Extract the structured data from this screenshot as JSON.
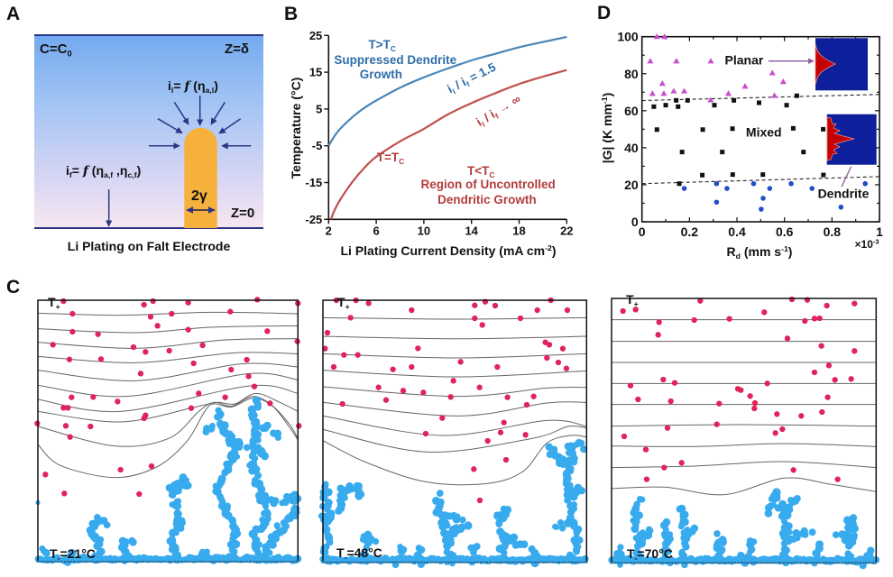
{
  "figure": {
    "panel_labels": {
      "a": "A",
      "b": "B",
      "c": "C",
      "d": "D"
    },
    "panel_a": {
      "concentration_label": "C=C_{0}",
      "top_boundary_label": "Z=δ",
      "bottom_boundary_label": "Z=0",
      "tip_current_label": "i_{l}= *f* (η_{a,l})",
      "flat_current_label": "i_{f}= *f* (η_{a,f} ,η_{c,f})",
      "tip_width_label": "2γ",
      "caption": "Li Plating on Falt Electrode",
      "colors": {
        "electrolyte_top": "#74aaf0",
        "electrolyte_bottom": "#f6e6f0",
        "dendrite": "#f6b03c",
        "arrows": "#2b3585"
      }
    },
    "panel_c": {
      "simulations": [
        {
          "anode_label": "T_{+}",
          "cathode_label": "T_{-}=21°C"
        },
        {
          "anode_label": "T_{+}",
          "cathode_label": "T_{-}=48°C"
        },
        {
          "anode_label": "T_{+}",
          "cathode_label": "T_{-}=70°C"
        }
      ],
      "colors": {
        "ions": "#e0245a",
        "dendrite": "#38aaee",
        "isotherms": "#666666"
      }
    }
  },
  "chart_data": [
    {
      "panel": "B",
      "type": "line",
      "title": "",
      "xlabel": "Li Plating Current Density (mA cm^{-2})",
      "ylabel": "Temperature (°C)",
      "xlim": [
        2,
        22
      ],
      "ylim": [
        -25,
        25
      ],
      "xticks": [
        2,
        6,
        10,
        14,
        18,
        22
      ],
      "yticks": [
        25,
        15,
        5,
        -5,
        -15,
        -25
      ],
      "grid": false,
      "series": [
        {
          "name": "i_{l} / i_{f} = 1.5",
          "color": "#4a86b8",
          "x": [
            2,
            2.5,
            3,
            4,
            5,
            6,
            8,
            10,
            12,
            14,
            16,
            18,
            20,
            22
          ],
          "y": [
            -5,
            -2.3,
            -0.3,
            2.8,
            5.3,
            7.3,
            10.8,
            13.6,
            16.0,
            18.2,
            20.0,
            21.8,
            23.2,
            24.6
          ]
        },
        {
          "name": "i_{l} / i_{f} → ∞",
          "color": "#c0504d",
          "x": [
            2.2,
            2.5,
            3,
            4,
            5,
            6,
            8,
            10,
            12,
            14,
            16,
            18,
            20,
            22
          ],
          "y": [
            -25,
            -22.5,
            -19.5,
            -14.8,
            -11.0,
            -8.0,
            -3.8,
            -0.4,
            3.5,
            6.6,
            9.3,
            11.8,
            13.8,
            15.6
          ]
        }
      ],
      "annotations": [
        {
          "text": "T>T_{C}",
          "at": [
            6.5,
            22.4
          ],
          "color": "#2f6ea8"
        },
        {
          "text": "Suppressed Dendrite",
          "at": [
            7.6,
            18.2
          ],
          "color": "#2f6ea8"
        },
        {
          "text": "Growth",
          "at": [
            6.4,
            14.3
          ],
          "color": "#2f6ea8"
        },
        {
          "text": "i_{l} / i_{f} = 1.5",
          "at": [
            14.0,
            13.3
          ],
          "color": "#2f6ea8"
        },
        {
          "text": "i_{l} / i_{f} → ∞",
          "at": [
            16.3,
            4.5
          ],
          "color": "#b23c3c"
        },
        {
          "text": "T=T_{C}",
          "at": [
            7.2,
            -8.3
          ],
          "color": "#b23c3c"
        },
        {
          "text": "T<T_{C}",
          "at": [
            14.8,
            -11.9
          ],
          "color": "#b23c3c"
        },
        {
          "text": "Region of Uncontrolled",
          "at": [
            15.4,
            -15.6
          ],
          "color": "#b23c3c"
        },
        {
          "text": "Dendritic Growth",
          "at": [
            15.3,
            -19.8
          ],
          "color": "#b23c3c"
        }
      ]
    },
    {
      "panel": "D",
      "type": "scatter",
      "title": "",
      "xlabel": "R_{d} (mm s^{-1})",
      "ylabel": "|G| (K mm^{-1})",
      "x_multiplier": "×10^{-3}",
      "xlim": [
        0,
        1
      ],
      "ylim": [
        0,
        100
      ],
      "xticks": [
        0,
        0.2,
        0.4,
        0.6,
        0.8,
        1
      ],
      "yticks": [
        0,
        20,
        40,
        60,
        80,
        100
      ],
      "grid": false,
      "series": [
        {
          "name": "Planar",
          "marker": "triangle",
          "color": "#c94fcf",
          "x": [
            0.035,
            0.063,
            0.095,
            0.145,
            0.29,
            0.086,
            0.044,
            0.092,
            0.134,
            0.178,
            0.289,
            0.364,
            0.434,
            0.549,
            0.595,
            0.558
          ],
          "y": [
            86.8,
            100,
            100,
            86.8,
            86.8,
            74.7,
            69.3,
            69.3,
            70.6,
            70.6,
            65.8,
            69.3,
            73.2,
            80.4,
            75.7,
            68.2
          ]
        },
        {
          "name": "Mixed",
          "marker": "square",
          "color": "#111111",
          "x": [
            0.05,
            0.1,
            0.144,
            0.152,
            0.192,
            0.305,
            0.387,
            0.493,
            0.609,
            0.652,
            0.063,
            0.256,
            0.381,
            0.637,
            0.763,
            0.169,
            0.338,
            0.68,
            0.254,
            0.382,
            0.509,
            0.764,
            0.157
          ],
          "y": [
            62.2,
            63.0,
            65.6,
            62.2,
            65.6,
            63.0,
            65.6,
            64.3,
            63.0,
            68.1,
            49.8,
            49.8,
            50.3,
            50.5,
            50.0,
            37.7,
            37.7,
            37.7,
            25.2,
            25.5,
            25.5,
            25.3,
            20.6
          ]
        },
        {
          "name": "Dendrite",
          "marker": "circle",
          "color": "#1f4fc8",
          "x": [
            0.178,
            0.314,
            0.358,
            0.47,
            0.314,
            0.51,
            0.502,
            0.538,
            0.628,
            0.716,
            0.838,
            0.94
          ],
          "y": [
            18.0,
            20.6,
            18.0,
            20.6,
            10.6,
            12.7,
            6.8,
            18.0,
            20.6,
            18.0,
            7.9,
            20.6
          ]
        }
      ],
      "boundaries": [
        {
          "name": "planar-mixed",
          "style": "dashed",
          "x": [
            0,
            1
          ],
          "y": [
            65.5,
            68.8
          ]
        },
        {
          "name": "mixed-dendrite",
          "style": "dashed",
          "x": [
            0,
            1
          ],
          "y": [
            20.6,
            24.4
          ]
        }
      ],
      "annotations": [
        {
          "text": "Planar",
          "at": [
            0.43,
            87.2
          ],
          "color": "#111111"
        },
        {
          "text": "Mixed",
          "at": [
            0.513,
            48.2
          ],
          "color": "#111111"
        },
        {
          "text": "Dendrite",
          "at": [
            0.848,
            15.1
          ],
          "color": "#111111"
        }
      ],
      "inset_colors": {
        "background": "#0d1f9a",
        "lithium": "#c40000",
        "pointer": "#8b5a9e"
      }
    }
  ]
}
